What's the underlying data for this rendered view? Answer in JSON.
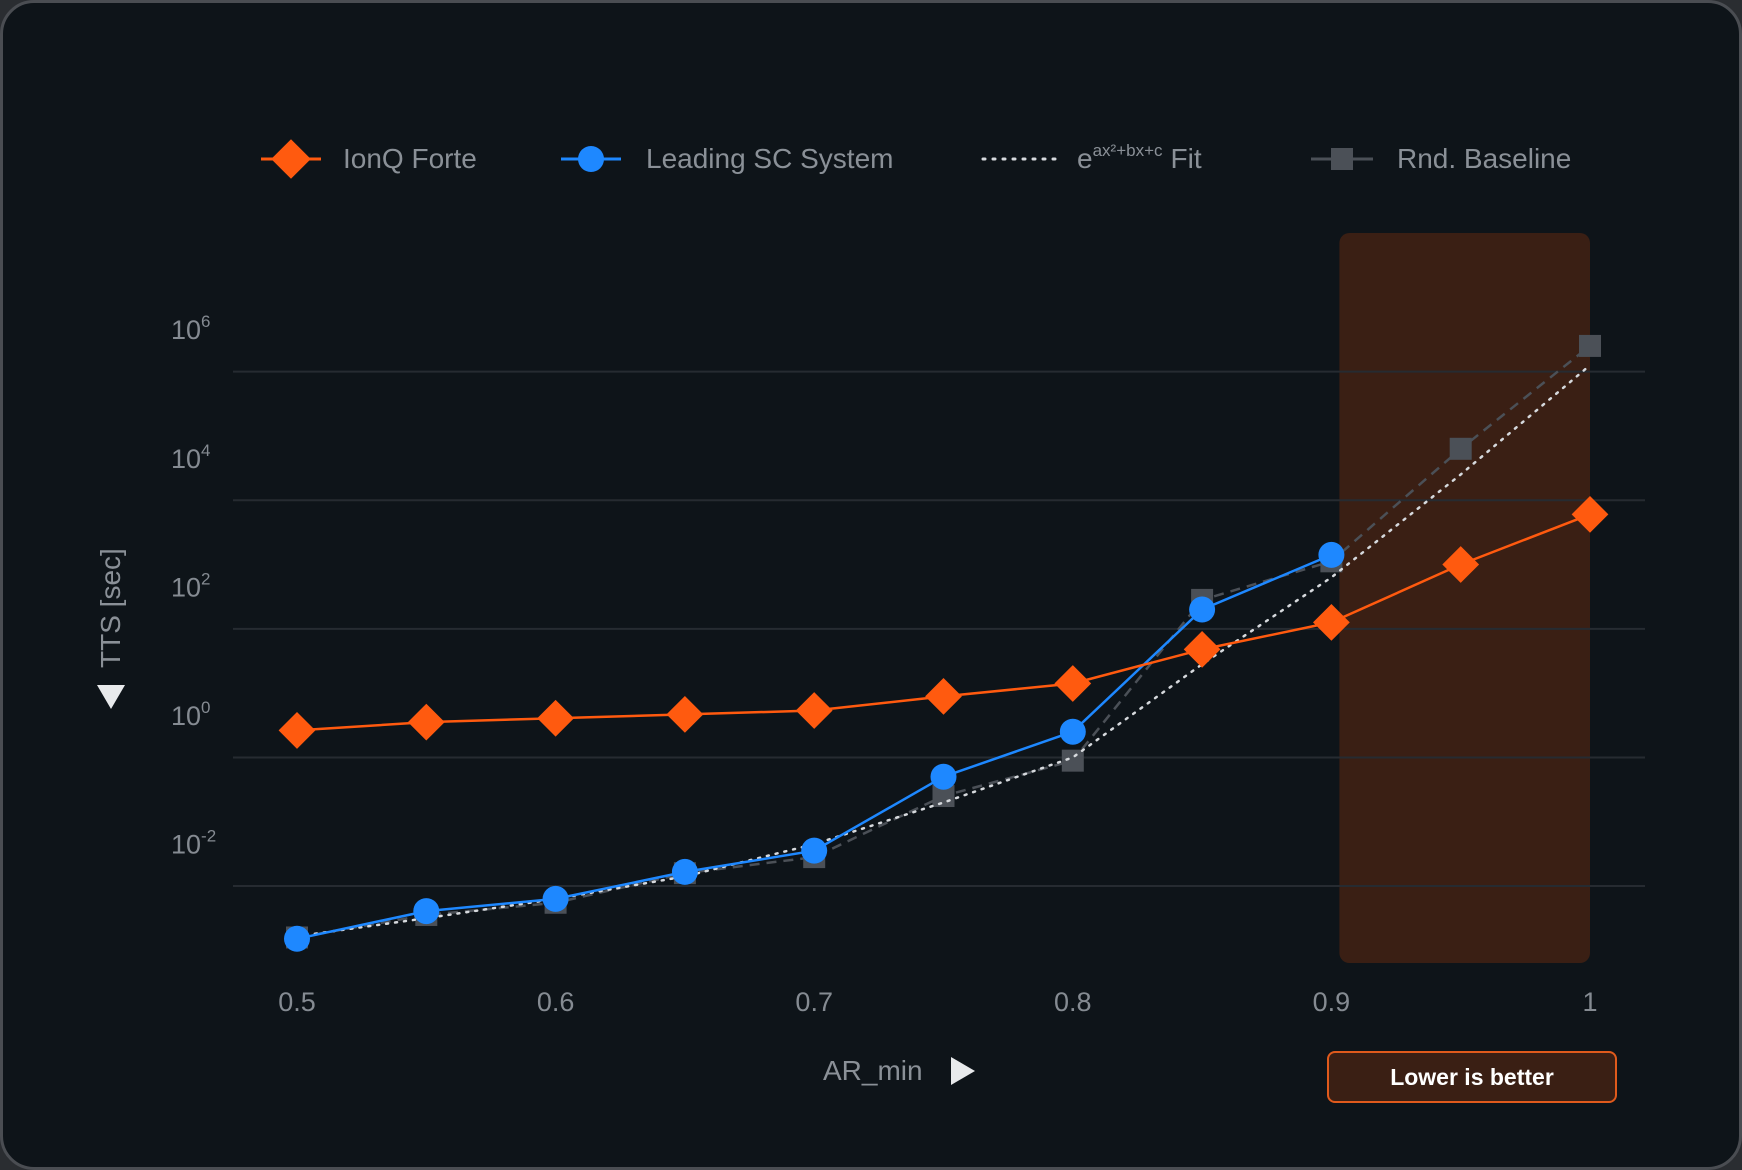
{
  "colors": {
    "ionq": "#ff5a0f",
    "sc": "#1e88ff",
    "fit": "#d6d9dd",
    "baseline": "#4b5057",
    "background": "#0e1419",
    "grid": "#262b31",
    "highlight": "#3a1f14"
  },
  "badge_text": "Lower is better",
  "chart_data": {
    "type": "line",
    "title": "",
    "xlabel": "AR_min",
    "ylabel": "TTS [sec]",
    "yscale": "log",
    "xlim": [
      0.5,
      1.0
    ],
    "ylim_log10": [
      -4.0,
      6.3
    ],
    "x_ticks": [
      {
        "label": "0.5",
        "value": 0.5
      },
      {
        "label": "0.6",
        "value": 0.6
      },
      {
        "label": "0.7",
        "value": 0.7
      },
      {
        "label": "0.8",
        "value": 0.8
      },
      {
        "label": "0.9",
        "value": 0.9
      },
      {
        "label": "1",
        "value": 1.0
      }
    ],
    "y_ticks": [
      {
        "base": "10",
        "exp": "6",
        "log10": 6
      },
      {
        "base": "10",
        "exp": "4",
        "log10": 4
      },
      {
        "base": "10",
        "exp": "2",
        "log10": 2
      },
      {
        "base": "10",
        "exp": "0",
        "log10": 0
      },
      {
        "base": "10",
        "exp": "-2",
        "log10": -2
      }
    ],
    "gridlines_log10": [
      5.2,
      3.2,
      1.2,
      -0.8,
      -2.8
    ],
    "highlight_region": {
      "x_from": 0.9,
      "x_to": 1.0,
      "label": "Lower is better"
    },
    "legend": [
      {
        "key": "ionq",
        "label": "IonQ Forte",
        "marker": "diamond"
      },
      {
        "key": "sc",
        "label": "Leading SC System",
        "marker": "circle"
      },
      {
        "key": "fit",
        "label": "Fit",
        "formula_base": "e",
        "formula_exp": "ax²+bx+c",
        "marker": "none"
      },
      {
        "key": "baseline",
        "label": "Rnd. Baseline",
        "marker": "square"
      }
    ],
    "series": [
      {
        "key": "baseline",
        "name": "Rnd. Baseline",
        "style": "dashed",
        "x": [
          0.5,
          0.55,
          0.6,
          0.65,
          0.7,
          0.75,
          0.8,
          0.85,
          0.9,
          0.95,
          1.0
        ],
        "log10_y": [
          -3.6,
          -3.25,
          -3.06,
          -2.6,
          -2.35,
          -1.4,
          -0.85,
          1.65,
          2.25,
          4.0,
          5.6
        ]
      },
      {
        "key": "fit",
        "name": "Fit",
        "style": "dotted",
        "x": [
          0.5,
          0.55,
          0.6,
          0.65,
          0.7,
          0.75,
          0.8,
          0.85,
          0.9,
          0.95,
          1.0
        ],
        "log10_y": [
          -3.58,
          -3.3,
          -3.0,
          -2.65,
          -2.15,
          -1.5,
          -0.8,
          0.65,
          2.0,
          3.6,
          5.3
        ]
      },
      {
        "key": "sc",
        "name": "Leading SC System",
        "style": "solid",
        "x": [
          0.5,
          0.55,
          0.6,
          0.65,
          0.7,
          0.75,
          0.8,
          0.85,
          0.9
        ],
        "log10_y": [
          -3.62,
          -3.19,
          -3.0,
          -2.58,
          -2.25,
          -1.1,
          -0.4,
          1.5,
          2.35
        ]
      },
      {
        "key": "ionq",
        "name": "IonQ Forte",
        "style": "solid",
        "x": [
          0.5,
          0.55,
          0.6,
          0.65,
          0.7,
          0.75,
          0.8,
          0.85,
          0.9,
          0.95,
          1.0
        ],
        "log10_y": [
          -0.38,
          -0.25,
          -0.19,
          -0.13,
          -0.07,
          0.15,
          0.35,
          0.88,
          1.3,
          2.2,
          2.98
        ]
      }
    ]
  }
}
